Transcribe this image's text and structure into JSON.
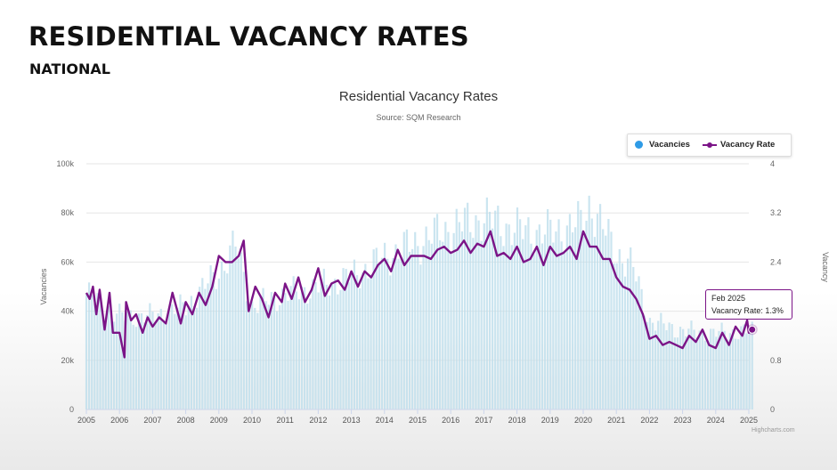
{
  "slide": {
    "title": "RESIDENTIAL VACANCY RATES",
    "subtitle": "NATIONAL"
  },
  "tooltip": {
    "date": "Feb 2025",
    "label": "Vacancy Rate: 1.3%"
  },
  "credits": "Highcharts.com",
  "colors": {
    "vacancies": "#b9dceb",
    "vacancies_legend": "#2e9be6",
    "rate": "#7b1487"
  },
  "chart_data": {
    "type": "bar+line",
    "title": "Residential Vacancy Rates",
    "subtitle": "Source: SQM Research",
    "ylabel_left": "Vacancies",
    "ylabel_right": "Vacancy",
    "ylim_left": [
      0,
      100000
    ],
    "ylim_right": [
      0,
      4
    ],
    "yticks_left": [
      "0",
      "20k",
      "40k",
      "60k",
      "80k",
      "100k"
    ],
    "yticks_right": [
      "0",
      "0.8",
      "1.6",
      "2.4",
      "3.2",
      "4"
    ],
    "xticks": [
      "2005",
      "2006",
      "2007",
      "2008",
      "2009",
      "2010",
      "2011",
      "2012",
      "2013",
      "2014",
      "2015",
      "2016",
      "2017",
      "2018",
      "2019",
      "2020",
      "2021",
      "2022",
      "2023",
      "2024",
      "2025"
    ],
    "legend": [
      "Vacancies",
      "Vacancy Rate"
    ],
    "legend_position": "top-right",
    "grid": true,
    "series": [
      {
        "name": "Vacancies",
        "type": "bar",
        "axis": "left",
        "x": [
          2005,
          2006,
          2007,
          2008,
          2009,
          2009.5,
          2010,
          2011,
          2012,
          2013,
          2014,
          2015,
          2016,
          2017,
          2018,
          2019,
          2020,
          2020.2,
          2021,
          2021.5,
          2022,
          2023,
          2024,
          2025
        ],
        "values": [
          47000,
          38000,
          38000,
          42000,
          56000,
          67000,
          42000,
          47000,
          50000,
          54000,
          62000,
          68000,
          74000,
          78000,
          73000,
          72000,
          76000,
          84000,
          64000,
          58000,
          36000,
          32000,
          31000,
          32000
        ]
      },
      {
        "name": "Vacancy Rate",
        "type": "line",
        "axis": "right",
        "x": [
          2005.0,
          2005.1,
          2005.2,
          2005.3,
          2005.4,
          2005.55,
          2005.7,
          2005.8,
          2006.0,
          2006.15,
          2006.2,
          2006.35,
          2006.5,
          2006.7,
          2006.85,
          2007.0,
          2007.2,
          2007.4,
          2007.6,
          2007.85,
          2008.0,
          2008.2,
          2008.4,
          2008.6,
          2008.8,
          2009.0,
          2009.2,
          2009.4,
          2009.6,
          2009.75,
          2009.9,
          2010.1,
          2010.3,
          2010.5,
          2010.7,
          2010.9,
          2011.0,
          2011.2,
          2011.4,
          2011.6,
          2011.8,
          2012.0,
          2012.2,
          2012.4,
          2012.6,
          2012.8,
          2013.0,
          2013.2,
          2013.4,
          2013.6,
          2013.8,
          2014.0,
          2014.2,
          2014.4,
          2014.6,
          2014.8,
          2015.0,
          2015.2,
          2015.4,
          2015.6,
          2015.8,
          2016.0,
          2016.2,
          2016.4,
          2016.6,
          2016.8,
          2017.0,
          2017.2,
          2017.4,
          2017.6,
          2017.8,
          2018.0,
          2018.2,
          2018.4,
          2018.6,
          2018.8,
          2019.0,
          2019.2,
          2019.4,
          2019.6,
          2019.8,
          2020.0,
          2020.2,
          2020.4,
          2020.6,
          2020.8,
          2021.0,
          2021.2,
          2021.4,
          2021.6,
          2021.8,
          2022.0,
          2022.2,
          2022.4,
          2022.6,
          2022.8,
          2023.0,
          2023.2,
          2023.4,
          2023.6,
          2023.8,
          2024.0,
          2024.2,
          2024.4,
          2024.6,
          2024.8,
          2024.95,
          2025.0,
          2025.1
        ],
        "values": [
          1.9,
          1.8,
          2.0,
          1.55,
          1.95,
          1.3,
          1.9,
          1.25,
          1.25,
          0.85,
          1.75,
          1.45,
          1.55,
          1.25,
          1.5,
          1.35,
          1.5,
          1.4,
          1.9,
          1.4,
          1.75,
          1.55,
          1.9,
          1.7,
          2.0,
          2.5,
          2.4,
          2.4,
          2.5,
          2.75,
          1.6,
          2.0,
          1.8,
          1.5,
          1.9,
          1.75,
          2.05,
          1.8,
          2.15,
          1.75,
          1.95,
          2.3,
          1.85,
          2.05,
          2.1,
          1.95,
          2.25,
          2.0,
          2.25,
          2.15,
          2.35,
          2.45,
          2.25,
          2.6,
          2.35,
          2.5,
          2.5,
          2.5,
          2.45,
          2.6,
          2.65,
          2.55,
          2.6,
          2.75,
          2.55,
          2.7,
          2.65,
          2.9,
          2.5,
          2.55,
          2.45,
          2.65,
          2.4,
          2.45,
          2.65,
          2.35,
          2.65,
          2.5,
          2.55,
          2.65,
          2.45,
          2.9,
          2.65,
          2.65,
          2.45,
          2.45,
          2.15,
          2.0,
          1.95,
          1.8,
          1.55,
          1.15,
          1.2,
          1.05,
          1.1,
          1.05,
          1.0,
          1.2,
          1.1,
          1.3,
          1.05,
          1.0,
          1.25,
          1.05,
          1.35,
          1.2,
          1.45,
          1.25,
          1.3
        ]
      }
    ],
    "highlight": {
      "x": 2025.1,
      "value": 1.3
    }
  }
}
